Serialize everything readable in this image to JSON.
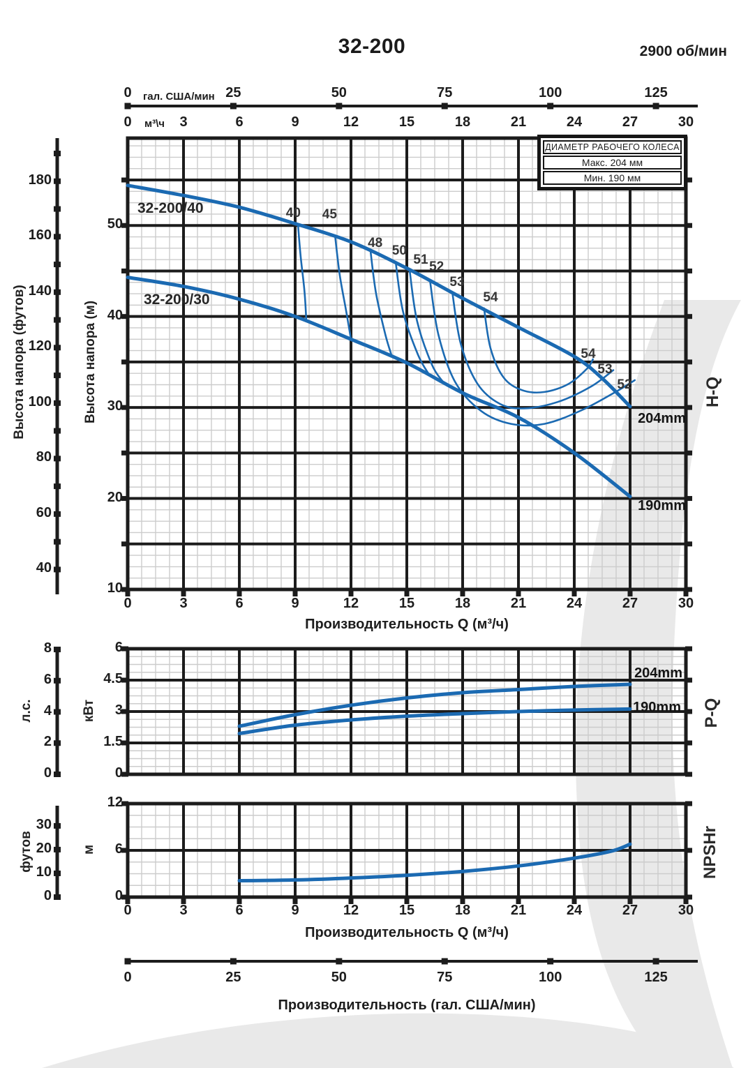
{
  "header": {
    "title": "32-200",
    "speed": "2900 об/мин"
  },
  "legend": {
    "title": "ДИАМЕТР РАБОЧЕГО КОЛЕСА",
    "max": "Макс. 204 мм",
    "min": "Мин. 190 мм"
  },
  "labels": {
    "flow_m3h_caption": "Производительность Q (м³/ч)",
    "flow_gal_caption": "Производительность (гал. США/мин)",
    "gal_unit": "гал. США/мин",
    "m3h_unit": "м³\\ч",
    "head_ft": "Высота напора (футов)",
    "head_m": "Высота напора (м)",
    "hp": "л.с.",
    "kw": "кВт",
    "ft": "футов",
    "m": "м",
    "section_hq": "H-Q",
    "section_pq": "P-Q",
    "section_npsh": "NPSHr",
    "curve40": "32-200/40",
    "curve30": "32-200/30",
    "d204": "204mm",
    "d190": "190mm"
  },
  "ticks": {
    "gal": [
      "0",
      "25",
      "50",
      "75",
      "100",
      "125"
    ],
    "gal_values": [
      0,
      25,
      50,
      75,
      100,
      125
    ],
    "m3h": [
      "0",
      "3",
      "6",
      "9",
      "12",
      "15",
      "18",
      "21",
      "24",
      "27",
      "30"
    ],
    "m3h_values": [
      0,
      3,
      6,
      9,
      12,
      15,
      18,
      21,
      24,
      27,
      30
    ],
    "head_m": [
      "10",
      "20",
      "30",
      "40",
      "50"
    ],
    "head_m_values": [
      10,
      20,
      30,
      40,
      50
    ],
    "head_ft": [
      "40",
      "60",
      "80",
      "100",
      "120",
      "140",
      "160",
      "180"
    ],
    "head_ft_values": [
      40,
      60,
      80,
      100,
      120,
      140,
      160,
      180
    ],
    "kw": [
      "0",
      "1.5",
      "3",
      "4.5",
      "6"
    ],
    "kw_values": [
      0,
      1.5,
      3,
      4.5,
      6
    ],
    "hp": [
      "0",
      "2",
      "4",
      "6",
      "8"
    ],
    "hp_values": [
      0,
      2,
      4,
      6,
      8
    ],
    "npsh_m": [
      "0",
      "6",
      "12"
    ],
    "npsh_m_values": [
      0,
      6,
      12
    ],
    "npsh_ft": [
      "0",
      "10",
      "20",
      "30"
    ],
    "npsh_ft_values": [
      0,
      10,
      20,
      30
    ]
  },
  "colors": {
    "curve": "#1b6ab2",
    "grid_major": "#1c1c1c",
    "grid_minor": "#cccccc",
    "watermark": "#e9e9e9"
  },
  "chart_data": [
    {
      "id": "H-Q",
      "type": "line",
      "title": "32-200 — 2900 об/мин — напорные характеристики",
      "xlabel": "Производительность Q (м³/ч)",
      "ylabel": "Высота напора (м)",
      "xlim": [
        0,
        30
      ],
      "ylim": [
        10,
        59.6
      ],
      "x_ticks": [
        0,
        3,
        6,
        9,
        12,
        15,
        18,
        21,
        24,
        27,
        30
      ],
      "y_ticks": [
        10,
        20,
        30,
        40,
        50
      ],
      "grid": true,
      "series": [
        {
          "name": "32-200/40 (204mm)",
          "role": "main",
          "points": [
            [
              0,
              54.4
            ],
            [
              3,
              53.3
            ],
            [
              6,
              52.0
            ],
            [
              9,
              50.2
            ],
            [
              12,
              48.2
            ],
            [
              15,
              45.3
            ],
            [
              18,
              42.0
            ],
            [
              21,
              38.8
            ],
            [
              24,
              35.6
            ],
            [
              25.5,
              33.2
            ],
            [
              27,
              30.1
            ]
          ]
        },
        {
          "name": "32-200/30 (190mm)",
          "role": "main",
          "points": [
            [
              0,
              44.3
            ],
            [
              3,
              43.3
            ],
            [
              6,
              41.9
            ],
            [
              9,
              40.0
            ],
            [
              12,
              37.5
            ],
            [
              15,
              34.9
            ],
            [
              18,
              31.6
            ],
            [
              21,
              28.9
            ],
            [
              24,
              25.0
            ],
            [
              27,
              20.2
            ]
          ]
        },
        {
          "name": "КПД 40",
          "role": "eff",
          "points": [
            [
              9.15,
              50.1
            ],
            [
              9.3,
              46.5
            ],
            [
              9.5,
              42.8
            ],
            [
              9.6,
              39.5
            ]
          ]
        },
        {
          "name": "КПД 45",
          "role": "eff",
          "points": [
            [
              11.15,
              48.8
            ],
            [
              11.4,
              44.5
            ],
            [
              11.75,
              40.5
            ],
            [
              12.0,
              37.5
            ]
          ]
        },
        {
          "name": "КПД 48",
          "role": "eff",
          "points": [
            [
              13.05,
              47.2
            ],
            [
              13.35,
              42.5
            ],
            [
              13.85,
              38.0
            ],
            [
              14.2,
              35.6
            ]
          ]
        },
        {
          "name": "КПД 50",
          "role": "eff",
          "points": [
            [
              14.4,
              46.0
            ],
            [
              14.8,
              40.5
            ],
            [
              15.6,
              35.8
            ],
            [
              16.2,
              33.6
            ]
          ]
        },
        {
          "name": "КПД 51",
          "role": "eff",
          "points": [
            [
              15.15,
              45.1
            ],
            [
              15.55,
              39.5
            ],
            [
              16.35,
              34.7
            ],
            [
              16.95,
              32.8
            ]
          ]
        },
        {
          "name": "КПД 52",
          "role": "eff",
          "points": [
            [
              16.25,
              43.9
            ],
            [
              16.7,
              38.0
            ],
            [
              17.6,
              32.8
            ],
            [
              19.0,
              29.6
            ],
            [
              20.6,
              28.2
            ],
            [
              22.4,
              28.2
            ],
            [
              24.4,
              29.7
            ],
            [
              26.3,
              31.8
            ],
            [
              27.25,
              33.0
            ]
          ]
        },
        {
          "name": "КПД 53",
          "role": "eff",
          "points": [
            [
              17.45,
              42.6
            ],
            [
              17.9,
              37.0
            ],
            [
              18.8,
              32.6
            ],
            [
              20.0,
              30.4
            ],
            [
              21.3,
              29.9
            ],
            [
              23.1,
              30.6
            ],
            [
              24.9,
              32.3
            ],
            [
              26.1,
              34.1
            ]
          ]
        },
        {
          "name": "КПД 54",
          "role": "eff",
          "points": [
            [
              19.15,
              40.9
            ],
            [
              19.5,
              36.5
            ],
            [
              20.2,
              33.3
            ],
            [
              21.2,
              31.9
            ],
            [
              22.4,
              31.7
            ],
            [
              23.7,
              32.6
            ],
            [
              24.7,
              34.3
            ],
            [
              25.0,
              35.3
            ]
          ]
        }
      ],
      "annotations": [
        {
          "text": "40",
          "q": 8.9,
          "h": 51.2
        },
        {
          "text": "45",
          "q": 10.85,
          "h": 51.0
        },
        {
          "text": "48",
          "q": 13.3,
          "h": 47.9
        },
        {
          "text": "50",
          "q": 14.6,
          "h": 47.0
        },
        {
          "text": "51",
          "q": 15.75,
          "h": 46.0
        },
        {
          "text": "52",
          "q": 16.6,
          "h": 45.3
        },
        {
          "text": "53",
          "q": 17.7,
          "h": 43.6
        },
        {
          "text": "54",
          "q": 19.5,
          "h": 41.9
        },
        {
          "text": "54",
          "q": 24.75,
          "h": 35.7
        },
        {
          "text": "53",
          "q": 25.65,
          "h": 34.0
        },
        {
          "text": "52",
          "q": 26.7,
          "h": 32.3
        }
      ]
    },
    {
      "id": "P-Q",
      "type": "line",
      "xlabel": "Производительность Q (м³/ч)",
      "ylabel": "кВт",
      "xlim": [
        0,
        30
      ],
      "ylim": [
        0,
        6
      ],
      "y_ticks": [
        0,
        1.5,
        3,
        4.5,
        6
      ],
      "grid": true,
      "series": [
        {
          "name": "204mm",
          "role": "main",
          "points": [
            [
              6,
              2.3
            ],
            [
              9,
              2.85
            ],
            [
              12,
              3.3
            ],
            [
              15,
              3.65
            ],
            [
              18,
              3.9
            ],
            [
              21,
              4.05
            ],
            [
              24,
              4.2
            ],
            [
              27,
              4.3
            ]
          ]
        },
        {
          "name": "190mm",
          "role": "main",
          "points": [
            [
              6,
              1.95
            ],
            [
              9,
              2.35
            ],
            [
              12,
              2.6
            ],
            [
              15,
              2.78
            ],
            [
              18,
              2.9
            ],
            [
              21,
              3.0
            ],
            [
              24,
              3.07
            ],
            [
              27,
              3.12
            ]
          ]
        }
      ]
    },
    {
      "id": "NPSHr",
      "type": "line",
      "xlabel": "Производительность Q (м³/ч)",
      "ylabel": "м",
      "xlim": [
        0,
        30
      ],
      "ylim": [
        0,
        12
      ],
      "y_ticks": [
        0,
        6,
        12
      ],
      "grid": true,
      "series": [
        {
          "name": "NPSHr",
          "role": "main",
          "points": [
            [
              6,
              2.1
            ],
            [
              9,
              2.2
            ],
            [
              12,
              2.45
            ],
            [
              15,
              2.8
            ],
            [
              18,
              3.3
            ],
            [
              21,
              4.0
            ],
            [
              24,
              5.0
            ],
            [
              26,
              5.9
            ],
            [
              27,
              6.8
            ]
          ]
        }
      ]
    }
  ]
}
